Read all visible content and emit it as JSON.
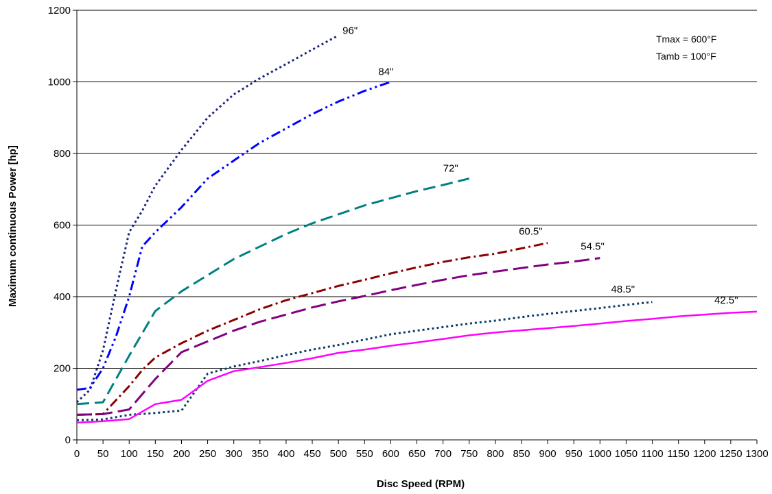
{
  "chart_data": {
    "type": "line",
    "title": "",
    "xlabel": "Disc Speed (RPM)",
    "ylabel": "Maximum continuous Power [hp]",
    "xlim": [
      0,
      1300
    ],
    "ylim": [
      0,
      1200
    ],
    "xticks": [
      0,
      50,
      100,
      150,
      200,
      250,
      300,
      350,
      400,
      450,
      500,
      550,
      600,
      650,
      700,
      750,
      800,
      850,
      900,
      950,
      1000,
      1050,
      1100,
      1150,
      1200,
      1250,
      1300
    ],
    "yticks": [
      0,
      200,
      400,
      600,
      800,
      1000,
      1200
    ],
    "grid": "horizontal",
    "annotations": [
      "Tmax = 600°F",
      "Tamb = 100°F"
    ],
    "series": [
      {
        "name": "96\"",
        "color": "#1a237e",
        "dash": "dot",
        "x": [
          0,
          25,
          50,
          75,
          100,
          125,
          150,
          175,
          200,
          250,
          300,
          350,
          400,
          450,
          500
        ],
        "y": [
          105,
          140,
          250,
          420,
          580,
          640,
          710,
          760,
          810,
          900,
          965,
          1010,
          1050,
          1090,
          1130
        ]
      },
      {
        "name": "84\"",
        "color": "#0000ff",
        "dash": "dashdotdot",
        "x": [
          0,
          25,
          50,
          75,
          100,
          125,
          150,
          200,
          250,
          300,
          350,
          400,
          450,
          500,
          550,
          600
        ],
        "y": [
          140,
          145,
          200,
          290,
          400,
          540,
          580,
          650,
          730,
          780,
          830,
          870,
          910,
          945,
          975,
          1000
        ]
      },
      {
        "name": "72\"",
        "color": "#008080",
        "dash": "dash",
        "x": [
          0,
          50,
          100,
          150,
          200,
          250,
          300,
          350,
          400,
          450,
          500,
          550,
          600,
          650,
          700,
          750
        ],
        "y": [
          100,
          105,
          235,
          360,
          415,
          460,
          505,
          540,
          575,
          605,
          630,
          655,
          675,
          695,
          712,
          730
        ]
      },
      {
        "name": "60.5\"",
        "color": "#8b0000",
        "dash": "dashdot",
        "x": [
          0,
          50,
          100,
          125,
          150,
          200,
          250,
          300,
          350,
          400,
          450,
          500,
          550,
          600,
          650,
          700,
          750,
          800,
          850,
          900
        ],
        "y": [
          70,
          72,
          150,
          195,
          230,
          270,
          305,
          335,
          365,
          390,
          410,
          430,
          447,
          465,
          482,
          497,
          510,
          520,
          535,
          550
        ]
      },
      {
        "name": "54.5\"",
        "color": "#800080",
        "dash": "longdash",
        "x": [
          0,
          50,
          100,
          150,
          200,
          250,
          300,
          350,
          400,
          450,
          500,
          550,
          600,
          650,
          700,
          750,
          800,
          850,
          900,
          950,
          1000
        ],
        "y": [
          70,
          72,
          85,
          170,
          245,
          275,
          305,
          330,
          350,
          370,
          387,
          402,
          418,
          433,
          447,
          460,
          470,
          480,
          490,
          498,
          508
        ]
      },
      {
        "name": "48.5\"",
        "color": "#0d3b66",
        "dash": "dot",
        "x": [
          0,
          50,
          100,
          150,
          200,
          250,
          300,
          350,
          400,
          450,
          500,
          550,
          600,
          650,
          700,
          750,
          800,
          850,
          900,
          950,
          1000,
          1050,
          1100
        ],
        "y": [
          55,
          57,
          70,
          75,
          82,
          185,
          205,
          220,
          237,
          252,
          265,
          280,
          295,
          305,
          315,
          325,
          333,
          343,
          352,
          360,
          368,
          377,
          385
        ]
      },
      {
        "name": "42.5\"",
        "color": "#ff00ff",
        "dash": "solid",
        "x": [
          0,
          50,
          100,
          150,
          200,
          250,
          300,
          350,
          400,
          450,
          500,
          550,
          600,
          650,
          700,
          750,
          800,
          850,
          900,
          950,
          1000,
          1050,
          1100,
          1150,
          1200,
          1250,
          1300
        ],
        "y": [
          48,
          52,
          58,
          100,
          112,
          165,
          192,
          203,
          215,
          228,
          243,
          252,
          263,
          272,
          282,
          292,
          300,
          306,
          312,
          318,
          325,
          332,
          338,
          345,
          350,
          355,
          358
        ]
      }
    ]
  }
}
